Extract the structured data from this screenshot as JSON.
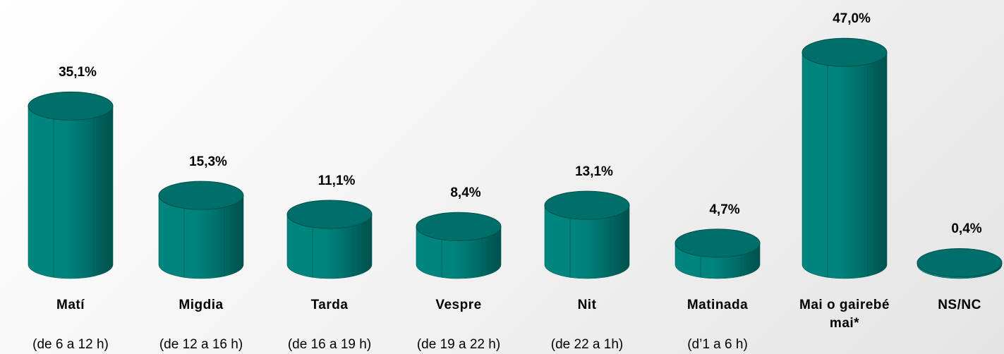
{
  "chart_data": {
    "type": "bar",
    "categories": [
      "Matí",
      "Migdia",
      "Tarda",
      "Vespre",
      "Nit",
      "Matinada",
      "Mai o gairebé mai*",
      "NS/NC"
    ],
    "subcategories": [
      "(de 6 a 12 h)",
      "(de 12 a 16 h)",
      "(de 16 a 19 h)",
      "(de 19 a 22 h)",
      "(de 22 a 1h)",
      "(d’1 a 6 h)",
      null,
      null
    ],
    "values": [
      35.1,
      15.3,
      11.1,
      8.4,
      13.1,
      4.7,
      47.0,
      0.4
    ],
    "value_labels": [
      "35,1%",
      "15,3%",
      "11,1%",
      "8,4%",
      "13,1%",
      "4,7%",
      "47,0%",
      "0,4%"
    ],
    "color": "#007a75"
  }
}
